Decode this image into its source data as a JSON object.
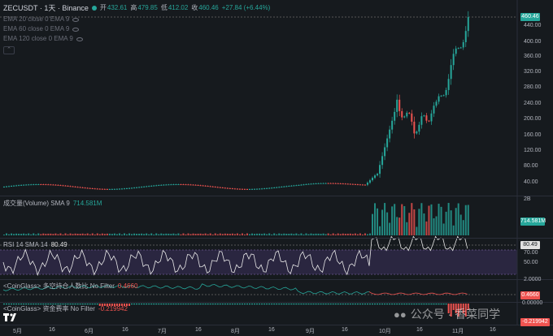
{
  "main": {
    "symbol": "ZECUSDT · 1天 · Binance",
    "open_label": "开",
    "open_value": "432.61",
    "high_label": "高",
    "high_value": "479.85",
    "low_label": "低",
    "low_value": "412.02",
    "close_label": "收",
    "close_value": "460.46",
    "change": "+27.84 (+6.44%)",
    "ema_lines": [
      "EMA 20 close 0 EMA 9",
      "EMA 60 close 0 EMA 9",
      "EMA 120 close 0 EMA 9"
    ],
    "price_ticks": [
      "440.00",
      "400.00",
      "360.00",
      "320.00",
      "280.00",
      "240.00",
      "200.00",
      "160.00",
      "120.00",
      "80.00",
      "40.00"
    ],
    "last_price": "460.46"
  },
  "volume": {
    "label": "成交量(Volume) SMA 9",
    "value": "714.581M",
    "tick": "2B",
    "last": "714.581M"
  },
  "rsi": {
    "label": "RSI 14 SMA 14",
    "value": "80.49",
    "ticks": [
      "70.00",
      "50.00"
    ],
    "last": "80.49"
  },
  "ratio": {
    "label": "<CoinGlass> 多空持仓人数比 No Filter",
    "value": "0.4660",
    "tick": "2.0000",
    "last": "0.4660"
  },
  "funding": {
    "label": "<CoinGlass> 资金费率 No Filter",
    "value": "-0.219942",
    "tick": "0.00000",
    "last": "-0.219942"
  },
  "x_axis": [
    "5月",
    "16",
    "6月",
    "16",
    "7月",
    "16",
    "8月",
    "16",
    "9月",
    "16",
    "10月",
    "16",
    "11月",
    "16"
  ],
  "watermark": "公众号 · 香菜同学",
  "colors": {
    "up": "#26a69a",
    "down": "#ef5350",
    "accent": "#2962ff"
  }
}
